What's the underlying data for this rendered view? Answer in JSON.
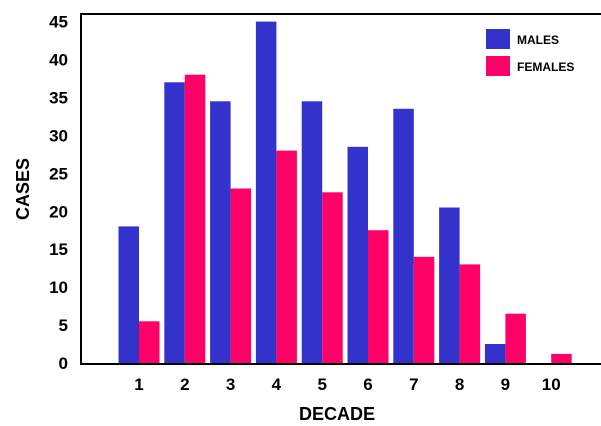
{
  "chart_data": {
    "type": "bar",
    "title": "",
    "xlabel": "DECADE",
    "ylabel": "CASES",
    "categories": [
      "1",
      "2",
      "3",
      "4",
      "5",
      "6",
      "7",
      "8",
      "9",
      "10"
    ],
    "series": [
      {
        "name": "MALES",
        "color": "#3333cc",
        "values": [
          18,
          37,
          34.5,
          45,
          34.5,
          28.5,
          33.5,
          20.5,
          2.5,
          0
        ]
      },
      {
        "name": "FEMALES",
        "color": "#ff0066",
        "values": [
          5.5,
          38,
          23,
          28,
          22.5,
          17.5,
          14,
          13,
          6.5,
          1.2
        ]
      }
    ],
    "yticks": [
      "0",
      "5",
      "10",
      "15",
      "20",
      "25",
      "30",
      "35",
      "40",
      "45"
    ],
    "ylim": [
      0,
      46
    ],
    "grid": false,
    "legend": "top-right"
  }
}
